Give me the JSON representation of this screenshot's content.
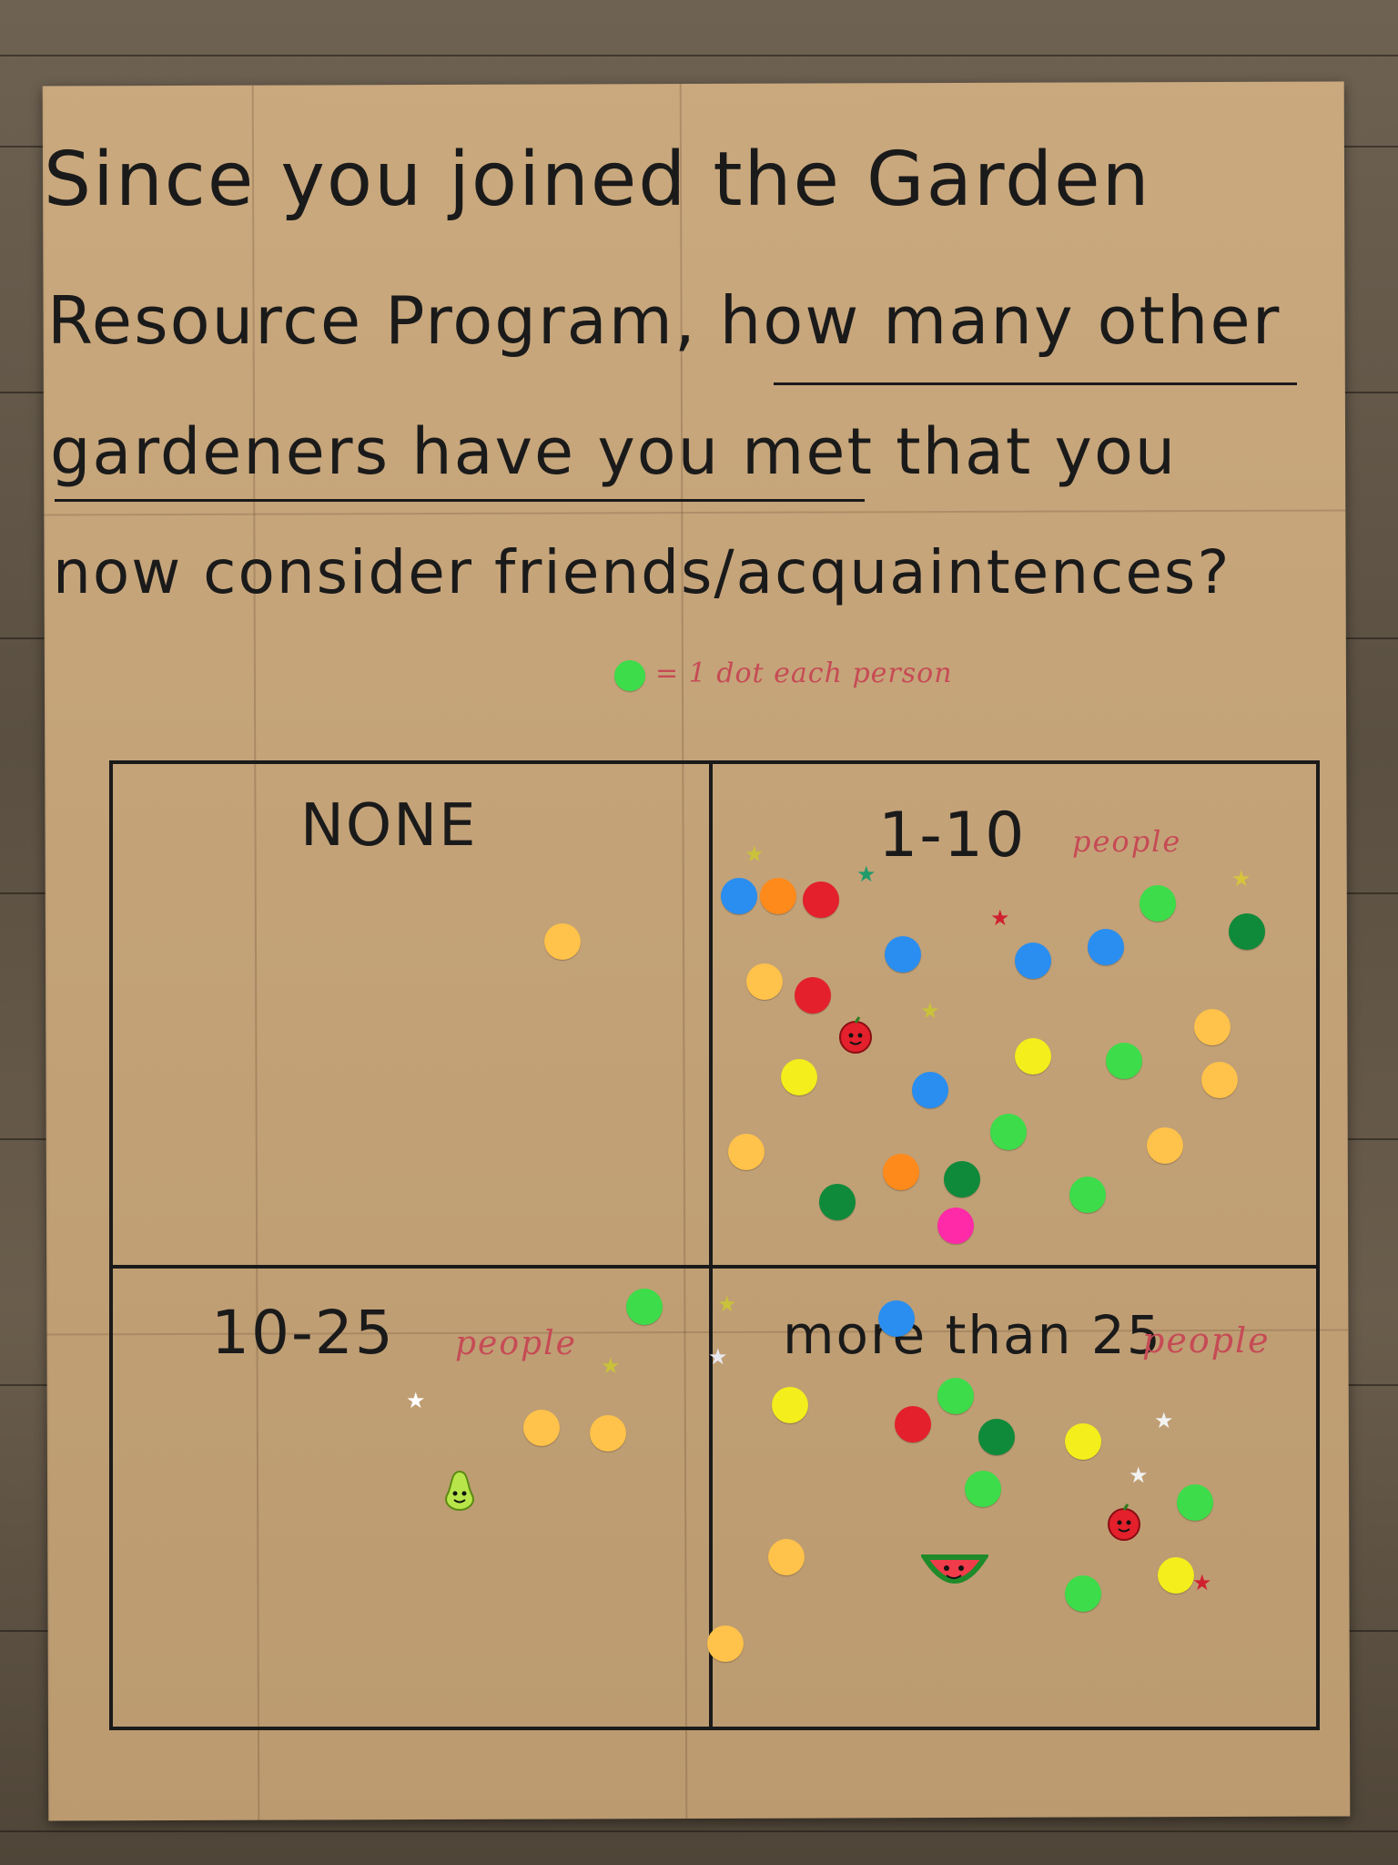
{
  "poster": {
    "title_lines": [
      "Since you joined the Garden",
      "Resource Program, how many other",
      "gardeners have you met that you",
      "now consider friends/acquaintences?"
    ],
    "legend_text": "= 1 dot each person",
    "legend_color": "#3ddc4a"
  },
  "quadrants": [
    {
      "label": "NONE",
      "sub": ""
    },
    {
      "label": "1-10",
      "sub": "people"
    },
    {
      "label": "10-25",
      "sub": "people"
    },
    {
      "label": "more than 25",
      "sub": "people"
    }
  ],
  "colors": {
    "paper": "#c7a477",
    "ink": "#1a1a1a",
    "red_marker": "#c64b55",
    "blue": "#2a8ef0",
    "orange": "#ff8a1c",
    "red": "#e3202b",
    "green": "#3ddc4a",
    "dark_green": "#0e8a3a",
    "yellow": "#f3ee1c",
    "light_orange": "#ffc24a",
    "pink": "#ff2aa8"
  }
}
